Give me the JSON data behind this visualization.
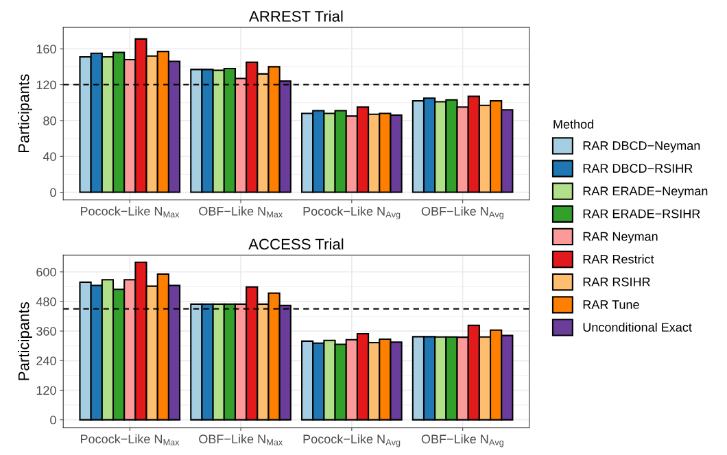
{
  "chart_data": [
    {
      "type": "bar",
      "title": "ARREST Trial",
      "ylabel": "Participants",
      "legend_title": "Method",
      "legend": "right",
      "grid": true,
      "categories": [
        "Pocock−Like N$_{Max}$",
        "OBF−Like N$_{Max}$",
        "Pocock−Like N$_{Avg}$",
        "OBF−Like N$_{Avg}$"
      ],
      "ylim": [
        -8.5,
        184
      ],
      "yticks": [
        0,
        40,
        80,
        120,
        160
      ],
      "ref_lines": [
        {
          "axis": "y",
          "value": 120,
          "line_style": "dashed",
          "color": "#000000"
        }
      ],
      "series": [
        {
          "name": "RAR DBCD−Neyman",
          "color": "#a6cee3",
          "values": [
            151,
            137,
            88,
            102
          ]
        },
        {
          "name": "RAR DBCD−RSIHR",
          "color": "#1f78b4",
          "values": [
            155,
            137,
            91,
            105
          ]
        },
        {
          "name": "RAR ERADE−Neyman",
          "color": "#b2df8a",
          "values": [
            151,
            136,
            88,
            101
          ]
        },
        {
          "name": "RAR ERADE−RSIHR",
          "color": "#33a02c",
          "values": [
            156,
            138,
            91,
            103
          ]
        },
        {
          "name": "RAR Neyman",
          "color": "#fb9a99",
          "values": [
            148,
            127,
            85,
            95
          ]
        },
        {
          "name": "RAR Restrict",
          "color": "#e31a1c",
          "values": [
            171,
            145,
            95,
            107
          ]
        },
        {
          "name": "RAR RSIHR",
          "color": "#fdbf6f",
          "values": [
            152,
            132,
            87,
            97
          ]
        },
        {
          "name": "RAR Tune",
          "color": "#ff7f00",
          "values": [
            157,
            140,
            88,
            102
          ]
        },
        {
          "name": "Unconditional Exact",
          "color": "#6a3d9a",
          "values": [
            146,
            124,
            86,
            92
          ]
        }
      ]
    },
    {
      "type": "bar",
      "title": "ACCESS Trial",
      "ylabel": "Participants",
      "grid": true,
      "categories": [
        "Pocock−Like N$_{Max}$",
        "OBF−Like N$_{Max}$",
        "Pocock−Like N$_{Avg}$",
        "OBF−Like N$_{Avg}$"
      ],
      "ylim": [
        -32,
        668
      ],
      "yticks": [
        0,
        120,
        240,
        360,
        480,
        600
      ],
      "ref_lines": [
        {
          "axis": "y",
          "value": 450,
          "line_style": "dashed",
          "color": "#000000"
        }
      ],
      "series": [
        {
          "color": "#a6cee3",
          "values": [
            558,
            469,
            319,
            337
          ]
        },
        {
          "color": "#1f78b4",
          "values": [
            545,
            469,
            311,
            337
          ]
        },
        {
          "color": "#b2df8a",
          "values": [
            568,
            469,
            322,
            336
          ]
        },
        {
          "color": "#33a02c",
          "values": [
            529,
            469,
            306,
            336
          ]
        },
        {
          "color": "#fb9a99",
          "values": [
            568,
            469,
            325,
            335
          ]
        },
        {
          "color": "#e31a1c",
          "values": [
            639,
            539,
            349,
            383
          ]
        },
        {
          "color": "#fdbf6f",
          "values": [
            542,
            469,
            313,
            336
          ]
        },
        {
          "color": "#ff7f00",
          "values": [
            591,
            514,
            327,
            364
          ]
        },
        {
          "color": "#6a3d9a",
          "values": [
            545,
            464,
            315,
            342
          ]
        }
      ]
    }
  ]
}
